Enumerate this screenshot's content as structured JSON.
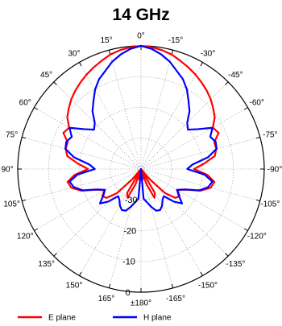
{
  "chart_data": {
    "type": "polar-line",
    "title": "14 GHz",
    "angle_unit": "deg",
    "angle_ticks": [
      "0°",
      "15°",
      "30°",
      "45°",
      "60°",
      "75°",
      "90°",
      "105°",
      "120°",
      "135°",
      "150°",
      "165°",
      "±180°",
      "-165°",
      "-150°",
      "-135°",
      "-120°",
      "-105°",
      "-90°",
      "-75°",
      "-60°",
      "-45°",
      "-30°",
      "-15°"
    ],
    "angle_tick_values": [
      0,
      15,
      30,
      45,
      60,
      75,
      90,
      105,
      120,
      135,
      150,
      165,
      180,
      -165,
      -150,
      -135,
      -120,
      -105,
      -90,
      -75,
      -60,
      -45,
      -30,
      -15
    ],
    "radial_ticks": [
      "0",
      "-10",
      "-20",
      "-30"
    ],
    "radial_tick_values": [
      0,
      -10,
      -20,
      -30
    ],
    "rlim": [
      -40,
      0
    ],
    "grid": true,
    "legend_position": "bottom",
    "series": [
      {
        "name": "E plane",
        "color": "#ff0000",
        "theta": [
          0,
          5,
          10,
          15,
          20,
          25,
          30,
          35,
          40,
          45,
          50,
          55,
          60,
          65,
          70,
          75,
          80,
          85,
          90,
          95,
          100,
          105,
          110,
          115,
          120,
          125,
          130,
          135,
          140,
          145,
          150,
          155,
          160,
          165,
          170,
          175,
          180,
          185,
          190,
          195,
          200,
          205,
          210,
          215,
          220,
          225,
          230,
          235,
          240,
          245,
          250,
          255,
          260,
          265,
          270,
          275,
          280,
          285,
          290,
          295,
          300,
          305,
          310,
          315,
          320,
          325,
          330,
          335,
          340,
          345,
          350,
          355
        ],
        "r": [
          0,
          -0.3,
          -0.8,
          -1.5,
          -2.6,
          -3.6,
          -4.6,
          -5.7,
          -6.8,
          -8,
          -9.4,
          -10.8,
          -13.1,
          -12.2,
          -14.7,
          -14.7,
          -15.7,
          -19.4,
          -22.8,
          -18.4,
          -15.8,
          -16.6,
          -19.4,
          -24.1,
          -26.3,
          -24.7,
          -25.4,
          -28.9,
          -35.9,
          -40,
          -31,
          -29.7,
          -34.7,
          -40,
          -36.7,
          -38.4,
          -40,
          -38.4,
          -36.7,
          -40,
          -34.7,
          -29.7,
          -31,
          -40,
          -35.9,
          -28.9,
          -25.4,
          -24.7,
          -26.3,
          -24.1,
          -19.4,
          -16.6,
          -15.8,
          -18.4,
          -22.8,
          -19.4,
          -15.7,
          -14.7,
          -14.7,
          -12.2,
          -13.1,
          -10.8,
          -9.4,
          -8,
          -6.8,
          -5.7,
          -4.6,
          -3.6,
          -2.6,
          -1.5,
          -0.8,
          -0.3
        ]
      },
      {
        "name": "H plane",
        "color": "#0000ff",
        "theta": [
          0,
          5,
          10,
          15,
          20,
          25,
          30,
          35,
          40,
          45,
          50,
          55,
          60,
          65,
          70,
          75,
          80,
          85,
          90,
          95,
          100,
          105,
          110,
          115,
          120,
          125,
          130,
          135,
          140,
          145,
          150,
          155,
          160,
          165,
          170,
          175,
          180,
          185,
          190,
          195,
          200,
          205,
          210,
          215,
          220,
          225,
          230,
          235,
          240,
          245,
          250,
          255,
          260,
          265,
          270,
          275,
          280,
          285,
          290,
          295,
          300,
          305,
          310,
          315,
          320,
          325,
          330,
          335,
          340,
          345,
          350,
          355
        ],
        "r": [
          0,
          -0.8,
          -2.2,
          -3.9,
          -6.1,
          -7.8,
          -10.2,
          -13.1,
          -15.5,
          -18.8,
          -20.1,
          -17.4,
          -13.2,
          -15.2,
          -14.2,
          -14.6,
          -17.9,
          -23.2,
          -25,
          -19.3,
          -16.5,
          -17.4,
          -19.8,
          -24.3,
          -26.5,
          -25.1,
          -22.6,
          -25.1,
          -28.5,
          -27.8,
          -26.3,
          -25.3,
          -25.6,
          -27.3,
          -29.1,
          -30.3,
          -40,
          -30.3,
          -29.1,
          -27.3,
          -25.6,
          -25.3,
          -26.3,
          -27.8,
          -28.5,
          -25.1,
          -22.6,
          -25.1,
          -26.5,
          -24.3,
          -19.8,
          -17.4,
          -16.5,
          -19.3,
          -25,
          -23.2,
          -17.9,
          -14.6,
          -14.2,
          -15.2,
          -13.2,
          -17.4,
          -20.1,
          -18.8,
          -15.5,
          -13.1,
          -10.2,
          -7.8,
          -6.1,
          -3.9,
          -2.2,
          -0.8
        ]
      }
    ]
  }
}
